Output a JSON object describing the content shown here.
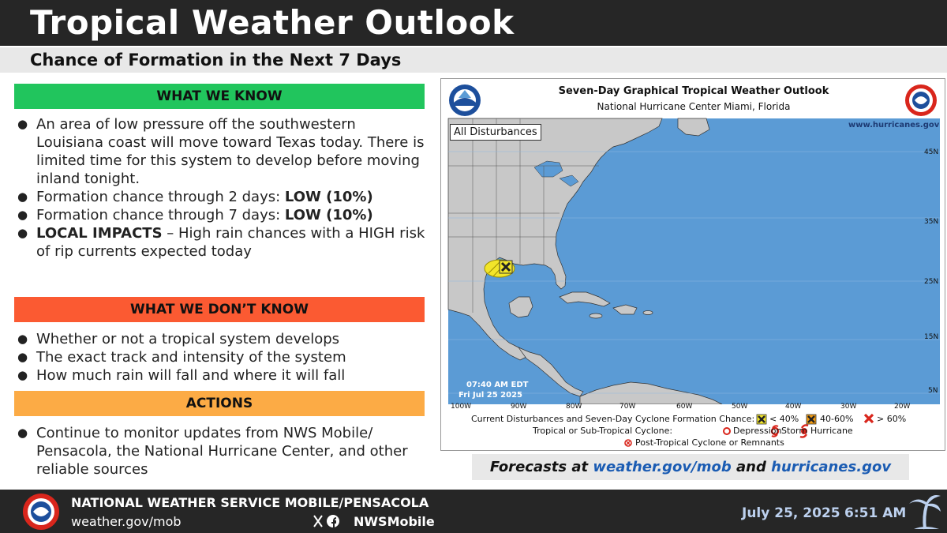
{
  "header": {
    "title": "Tropical Weather Outlook",
    "subtitle": "Chance of Formation in the Next 7 Days"
  },
  "what_we_know": {
    "heading": "WHAT WE KNOW",
    "items": [
      {
        "text": "An area of low pressure off the southwestern Louisiana coast will move toward Texas today. There is limited time for this system to develop before moving inland tonight."
      },
      {
        "text": "Formation chance through 2 days: ",
        "bold": "LOW (10%)"
      },
      {
        "text": "Formation chance through 7 days: ",
        "bold": "LOW (10%)"
      },
      {
        "bold": "LOCAL IMPACTS",
        "text": " – High rain chances with a HIGH risk of rip currents expected today"
      }
    ]
  },
  "what_we_dont_know": {
    "heading": "WHAT WE DON’T KNOW",
    "items": [
      "Whether or not a tropical system develops",
      "The exact track and intensity of the system",
      "How much rain will fall and where it will fall"
    ]
  },
  "actions": {
    "heading": "ACTIONS",
    "items": [
      "Continue to monitor updates from NWS Mobile/ Pensacola, the National Hurricane Center, and other reliable sources"
    ]
  },
  "map": {
    "title": "Seven-Day Graphical Tropical Weather Outlook",
    "subtitle": "National Hurricane Center  Miami, Florida",
    "filter_label": "All Disturbances",
    "website": "www.hurricanes.gov",
    "timestamp_time": "07:40 AM EDT",
    "timestamp_date": "Fri Jul 25 2025",
    "lat_labels": [
      "45N",
      "35N",
      "25N",
      "15N",
      "5N"
    ],
    "lon_labels": [
      "100W",
      "90W",
      "80W",
      "70W",
      "60W",
      "50W",
      "40W",
      "30W",
      "20W"
    ],
    "legend_row1_label": "Current Disturbances and Seven-Day Cyclone Formation Chance:",
    "legend_low": "< 40%",
    "legend_mid": "40-60%",
    "legend_high": "> 60%",
    "legend_row2_label": "Tropical or Sub-Tropical Cyclone:",
    "legend_depression": "Depression",
    "legend_storm": "Storm",
    "legend_hurricane": "Hurricane",
    "legend_post": "Post-Tropical Cyclone or Remnants",
    "colors": {
      "ocean": "#5b9bd5",
      "land": "#c8c8c8",
      "low": "#f2e52a",
      "mid": "#f39c12",
      "high": "#d9261c"
    }
  },
  "forecast": {
    "prefix": "Forecasts at ",
    "link1": "weather.gov/mob",
    "middle": " and ",
    "link2": "hurricanes.gov"
  },
  "footer": {
    "office": "NATIONAL WEATHER SERVICE MOBILE/PENSACOLA",
    "website": "weather.gov/mob",
    "social": "NWSMobile",
    "date": "July 25, 2025",
    "time": "6:51 AM"
  }
}
